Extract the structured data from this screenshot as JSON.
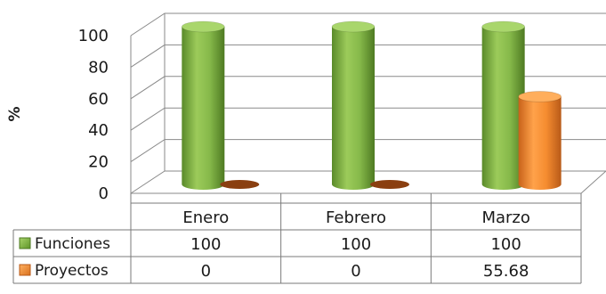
{
  "chart_data": {
    "type": "bar",
    "style": "3d-cylinder",
    "categories": [
      "Enero",
      "Febrero",
      "Marzo"
    ],
    "series": [
      {
        "name": "Funciones",
        "values": [
          100,
          100,
          100
        ],
        "color": "#77a73c"
      },
      {
        "name": "Proyectos",
        "values": [
          0,
          0,
          55.68
        ],
        "color": "#f08a2c"
      }
    ],
    "ylabel": "%",
    "ylim": [
      0,
      100
    ],
    "yticks": [
      "0",
      "20",
      "40",
      "60",
      "80",
      "100"
    ],
    "grid": true,
    "data_table": {
      "rows": [
        {
          "label": "Funciones",
          "cells": [
            "100",
            "100",
            "100"
          ]
        },
        {
          "label": "Proyectos",
          "cells": [
            "0",
            "0",
            "55.68"
          ]
        }
      ]
    }
  }
}
